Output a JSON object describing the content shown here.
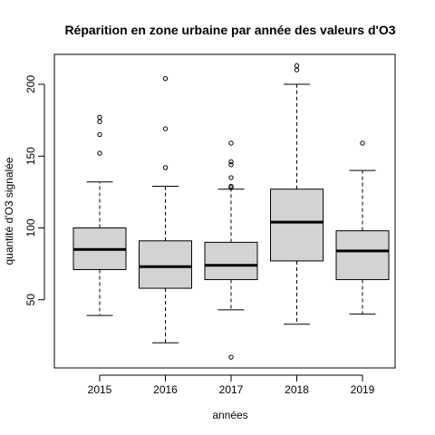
{
  "chart_data": {
    "type": "boxplot",
    "title": "Réparition en zone urbaine par année des valeurs d'O3",
    "xlabel": "années",
    "ylabel": "quantité d'O3 signalée",
    "ylim": [
      5,
      220
    ],
    "yticks": [
      50,
      100,
      150,
      200
    ],
    "categories": [
      "2015",
      "2016",
      "2017",
      "2018",
      "2019"
    ],
    "box_fill": "#d3d3d3",
    "boxes": [
      {
        "category": "2015",
        "whisker_low": 39,
        "q1": 71,
        "median": 85,
        "q3": 100,
        "whisker_high": 132,
        "outliers": [
          152,
          165,
          174,
          177
        ]
      },
      {
        "category": "2016",
        "whisker_low": 20,
        "q1": 58,
        "median": 73,
        "q3": 91,
        "whisker_high": 129,
        "outliers": [
          142,
          169,
          204
        ]
      },
      {
        "category": "2017",
        "whisker_low": 43,
        "q1": 64,
        "median": 74,
        "q3": 90,
        "whisker_high": 127,
        "outliers": [
          10,
          128,
          129,
          135,
          144,
          146,
          159
        ]
      },
      {
        "category": "2018",
        "whisker_low": 33,
        "q1": 77,
        "median": 104,
        "q3": 127,
        "whisker_high": 200,
        "outliers": [
          210,
          213
        ]
      },
      {
        "category": "2019",
        "whisker_low": 40,
        "q1": 64,
        "median": 84,
        "q3": 98,
        "whisker_high": 140,
        "outliers": [
          159
        ]
      }
    ]
  }
}
